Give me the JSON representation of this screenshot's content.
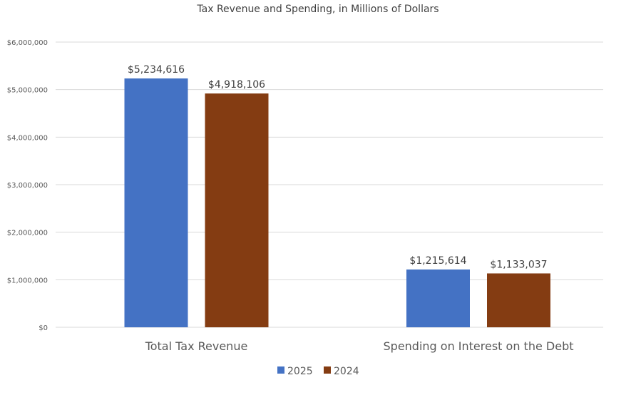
{
  "chart_data": {
    "type": "bar",
    "title": "Tax Revenue and Spending, in Millions of Dollars",
    "xlabel": "",
    "ylabel": "",
    "categories": [
      "Total Tax Revenue",
      "Spending on Interest on the Debt"
    ],
    "series": [
      {
        "name": "2025",
        "color": "#4472C4",
        "values": [
          5234616,
          1215614
        ],
        "labels": [
          "$5,234,616",
          "$1,215,614"
        ]
      },
      {
        "name": "2024",
        "color": "#843C12",
        "values": [
          4918106,
          1133037
        ],
        "labels": [
          "$4,918,106",
          "$1,133,037"
        ]
      }
    ],
    "ylim": [
      0,
      6000000
    ],
    "yticks": [
      0,
      1000000,
      2000000,
      3000000,
      4000000,
      5000000,
      6000000
    ],
    "ytick_labels": [
      "$0",
      "$1,000,000",
      "$2,000,000",
      "$3,000,000",
      "$4,000,000",
      "$5,000,000",
      "$6,000,000"
    ],
    "grid": true,
    "legend_position": "bottom"
  }
}
